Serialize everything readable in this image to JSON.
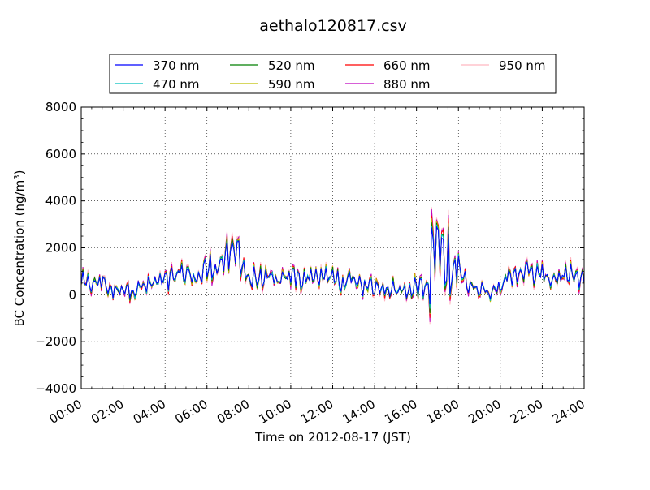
{
  "chart_data": {
    "type": "line",
    "title": "aethalo120817.csv",
    "xlabel": "Time on 2012-08-17 (JST)",
    "ylabel": "BC Concentration (ng/m",
    "ylabel_sup": "3",
    "ylabel_end": ")",
    "xlim": [
      "00:00",
      "24:00"
    ],
    "ylim": [
      -4000,
      8000
    ],
    "grid": true,
    "legend_position": "top-center",
    "x_ticks": [
      "00:00",
      "02:00",
      "04:00",
      "06:00",
      "08:00",
      "10:00",
      "12:00",
      "14:00",
      "16:00",
      "18:00",
      "20:00",
      "22:00",
      "24:00"
    ],
    "y_ticks": [
      "−4000",
      "−2000",
      "0",
      "2000",
      "4000",
      "6000",
      "8000"
    ],
    "y_tick_values": [
      -4000,
      -2000,
      0,
      2000,
      4000,
      6000,
      8000
    ],
    "series": [
      {
        "name": "370 nm",
        "color": "#0000ff"
      },
      {
        "name": "470 nm",
        "color": "#00bfbf"
      },
      {
        "name": "520 nm",
        "color": "#007f00"
      },
      {
        "name": "590 nm",
        "color": "#bfbf00"
      },
      {
        "name": "660 nm",
        "color": "#ff0000"
      },
      {
        "name": "880 nm",
        "color": "#bf00bf"
      },
      {
        "name": "950 nm",
        "color": "#ffb6c1"
      }
    ],
    "x": [
      "00:00",
      "00:30",
      "01:00",
      "01:30",
      "02:00",
      "02:30",
      "03:00",
      "03:30",
      "04:00",
      "04:30",
      "05:00",
      "05:30",
      "06:00",
      "06:30",
      "07:00",
      "07:30",
      "08:00",
      "08:30",
      "09:00",
      "09:30",
      "10:00",
      "10:30",
      "11:00",
      "11:30",
      "12:00",
      "12:30",
      "13:00",
      "13:30",
      "14:00",
      "14:30",
      "15:00",
      "15:30",
      "16:00",
      "16:30",
      "17:00",
      "17:30",
      "18:00",
      "18:30",
      "19:00",
      "19:30",
      "20:00",
      "20:30",
      "21:00",
      "21:30",
      "22:00",
      "22:30",
      "23:00",
      "23:30",
      "24:00"
    ],
    "baseline": [
      500,
      400,
      600,
      100,
      300,
      200,
      350,
      500,
      600,
      800,
      900,
      700,
      1100,
      1300,
      1600,
      1900,
      600,
      700,
      650,
      550,
      800,
      700,
      850,
      750,
      700,
      500,
      600,
      400,
      300,
      350,
      250,
      200,
      400,
      300,
      2500,
      700,
      1400,
      300,
      250,
      100,
      500,
      700,
      1100,
      900,
      800,
      700,
      850,
      700,
      650
    ],
    "spike_scale": [
      1.0,
      1.1,
      1.2,
      1.3,
      1.4,
      1.5,
      1.6
    ]
  }
}
